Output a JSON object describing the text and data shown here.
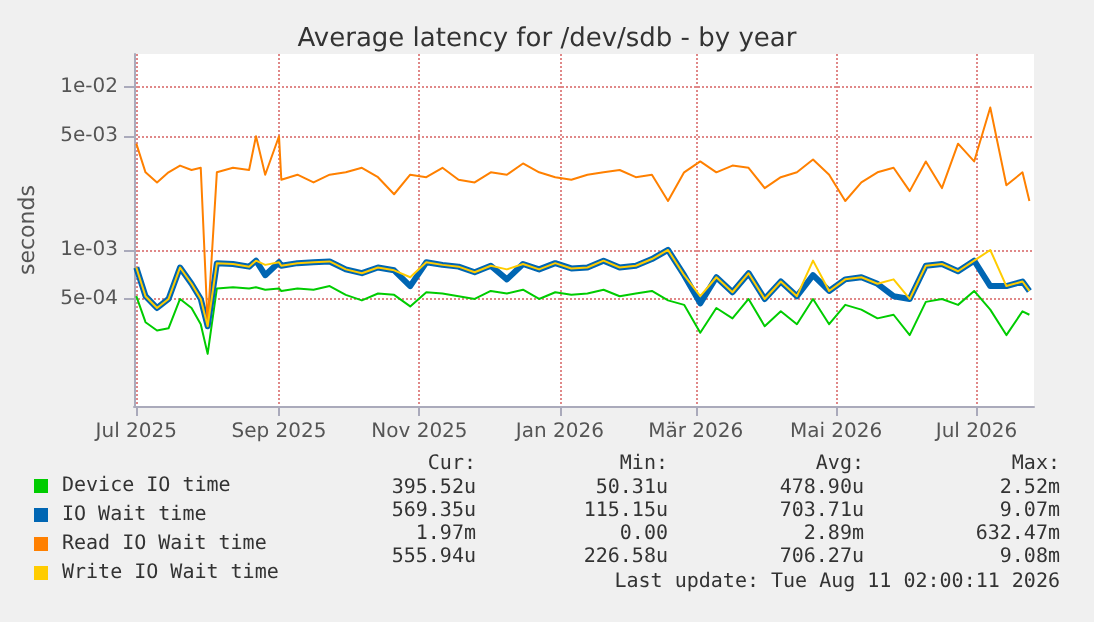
{
  "chart_data": {
    "type": "line",
    "title": "Average latency for /dev/sdb - by year",
    "ylabel": "seconds",
    "log": "y",
    "xlim": [
      "2025-06-30",
      "2026-07-26"
    ],
    "xticks": [
      {
        "value": "2025-07-01",
        "label": "Jul 2025"
      },
      {
        "value": "2025-09-01",
        "label": "Sep 2025"
      },
      {
        "value": "2025-11-01",
        "label": "Nov 2025"
      },
      {
        "value": "2026-01-01",
        "label": "Jan 2026"
      },
      {
        "value": "2026-03-01",
        "label": "Mär 2026"
      },
      {
        "value": "2026-05-01",
        "label": "Mai 2026"
      },
      {
        "value": "2026-07-01",
        "label": "Jul 2026"
      }
    ],
    "ylim": [
      0.00011,
      0.016
    ],
    "yticks": [
      {
        "value": 0.0005,
        "label": "5e-04"
      },
      {
        "value": 0.001,
        "label": "1e-03"
      },
      {
        "value": 0.005,
        "label": "5e-03"
      },
      {
        "value": 0.01,
        "label": "1e-02"
      }
    ],
    "grid": true,
    "legend": "bottom",
    "marker": "none",
    "line_style": "solid",
    "x": [
      "2025-07-01",
      "2025-07-05",
      "2025-07-10",
      "2025-07-15",
      "2025-07-20",
      "2025-07-25",
      "2025-07-29",
      "2025-08-01",
      "2025-08-05",
      "2025-08-12",
      "2025-08-19",
      "2025-08-22",
      "2025-08-26",
      "2025-09-01",
      "2025-09-02",
      "2025-09-09",
      "2025-09-16",
      "2025-09-23",
      "2025-09-30",
      "2025-10-07",
      "2025-10-14",
      "2025-10-21",
      "2025-10-28",
      "2025-11-04",
      "2025-11-11",
      "2025-11-18",
      "2025-11-25",
      "2025-12-02",
      "2025-12-09",
      "2025-12-16",
      "2025-12-23",
      "2025-12-30",
      "2026-01-06",
      "2026-01-13",
      "2026-01-20",
      "2026-01-27",
      "2026-02-03",
      "2026-02-10",
      "2026-02-17",
      "2026-02-24",
      "2026-03-03",
      "2026-03-10",
      "2026-03-17",
      "2026-03-24",
      "2026-03-31",
      "2026-04-07",
      "2026-04-14",
      "2026-04-21",
      "2026-04-28",
      "2026-05-05",
      "2026-05-12",
      "2026-05-19",
      "2026-05-26",
      "2026-06-02",
      "2026-06-09",
      "2026-06-16",
      "2026-06-23",
      "2026-06-30",
      "2026-07-07",
      "2026-07-14",
      "2026-07-21",
      "2026-07-24"
    ],
    "series": [
      {
        "name": "Device IO time",
        "color": "#00cc00",
        "values": [
          0.00052,
          0.00036,
          0.00032,
          0.00033,
          0.0005,
          0.00044,
          0.00035,
          0.00023,
          0.00058,
          0.00059,
          0.00058,
          0.00059,
          0.00057,
          0.00058,
          0.00056,
          0.00058,
          0.00057,
          0.0006,
          0.00053,
          0.00049,
          0.00054,
          0.00053,
          0.00045,
          0.00055,
          0.00054,
          0.00052,
          0.0005,
          0.00056,
          0.00054,
          0.00057,
          0.0005,
          0.00055,
          0.00053,
          0.00054,
          0.00057,
          0.00052,
          0.00054,
          0.00056,
          0.00049,
          0.00046,
          0.00031,
          0.00044,
          0.00038,
          0.0005,
          0.00034,
          0.00042,
          0.00035,
          0.0005,
          0.00035,
          0.00046,
          0.00043,
          0.00038,
          0.0004,
          0.0003,
          0.00048,
          0.0005,
          0.00046,
          0.00056,
          0.00043,
          0.0003,
          0.00042,
          0.0004
        ]
      },
      {
        "name": "IO Wait time",
        "color": "#0066b3",
        "values": [
          0.00078,
          0.00052,
          0.00044,
          0.0005,
          0.00078,
          0.00062,
          0.0005,
          0.00034,
          0.00083,
          0.00082,
          0.00079,
          0.00086,
          0.0007,
          0.00084,
          0.0008,
          0.00083,
          0.00084,
          0.00085,
          0.00076,
          0.00072,
          0.00078,
          0.00075,
          0.0006,
          0.00084,
          0.00081,
          0.00079,
          0.00073,
          0.0008,
          0.00066,
          0.00082,
          0.00076,
          0.00083,
          0.00077,
          0.00078,
          0.00086,
          0.00078,
          0.0008,
          0.00088,
          0.001,
          0.0007,
          0.00047,
          0.00068,
          0.00055,
          0.00072,
          0.0005,
          0.00064,
          0.00052,
          0.0007,
          0.00056,
          0.00066,
          0.00068,
          0.00062,
          0.00052,
          0.0005,
          0.0008,
          0.00082,
          0.00074,
          0.00086,
          0.0006,
          0.0006,
          0.00064,
          0.00056
        ]
      },
      {
        "name": "Read IO Wait time",
        "color": "#ff8000",
        "values": [
          0.0045,
          0.003,
          0.0026,
          0.003,
          0.0033,
          0.0031,
          0.0032,
          0.00035,
          0.003,
          0.0032,
          0.0031,
          0.005,
          0.0029,
          0.005,
          0.0027,
          0.0029,
          0.0026,
          0.0029,
          0.003,
          0.0032,
          0.0028,
          0.0022,
          0.0029,
          0.0028,
          0.0032,
          0.0027,
          0.0026,
          0.003,
          0.0029,
          0.0034,
          0.003,
          0.0028,
          0.0027,
          0.0029,
          0.003,
          0.0031,
          0.0028,
          0.0029,
          0.002,
          0.003,
          0.0035,
          0.003,
          0.0033,
          0.0032,
          0.0024,
          0.0028,
          0.003,
          0.0036,
          0.0029,
          0.002,
          0.0026,
          0.003,
          0.0032,
          0.0023,
          0.0035,
          0.0024,
          0.0045,
          0.0035,
          0.0075,
          0.0025,
          0.003,
          0.002
        ]
      },
      {
        "name": "Write IO Wait time",
        "color": "#ffcc00",
        "values": [
          0.00078,
          0.00052,
          0.00044,
          0.0005,
          0.00078,
          0.00062,
          0.0005,
          0.00034,
          0.00083,
          0.00082,
          0.00079,
          0.00086,
          0.00081,
          0.00084,
          0.0008,
          0.00083,
          0.00084,
          0.00085,
          0.00076,
          0.00072,
          0.00078,
          0.00075,
          0.00068,
          0.00084,
          0.00081,
          0.00079,
          0.00073,
          0.0008,
          0.00076,
          0.00082,
          0.00076,
          0.00083,
          0.00077,
          0.00078,
          0.00086,
          0.00078,
          0.0008,
          0.00088,
          0.001,
          0.0007,
          0.00052,
          0.00068,
          0.00055,
          0.00072,
          0.0005,
          0.00064,
          0.00052,
          0.00086,
          0.00056,
          0.00066,
          0.00068,
          0.00062,
          0.00066,
          0.0005,
          0.0008,
          0.00082,
          0.00074,
          0.00086,
          0.001,
          0.0006,
          0.00064,
          0.00056
        ]
      }
    ],
    "annotations": [
      "Cur:",
      "Min:",
      "Avg:",
      "Max:",
      "395.52u",
      "50.31u",
      "478.90u",
      "2.52m",
      "569.35u",
      "115.15u",
      "703.71u",
      "9.07m",
      "1.97m",
      "0.00",
      "2.89m",
      "632.47m",
      "555.94u",
      "226.58u",
      "706.27u",
      "9.08m",
      "Last update: Tue Aug 11 02:00:11 2026"
    ]
  }
}
